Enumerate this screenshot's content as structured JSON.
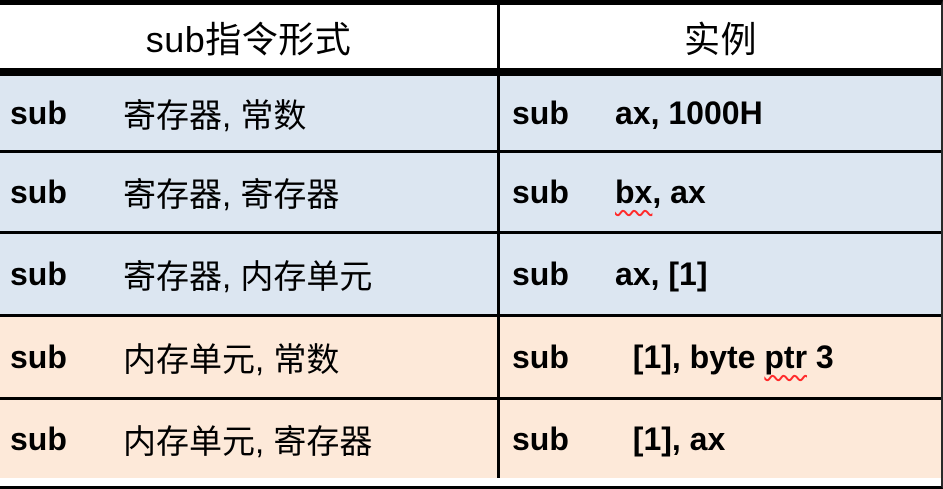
{
  "colors": {
    "row_blue": "#dce6f1",
    "row_orange": "#fde9d9",
    "border": "#000000",
    "squiggle": "#ff2a2a"
  },
  "header": {
    "col1": "sub指令形式",
    "col2": "实例"
  },
  "rows": [
    {
      "kw": "sub",
      "form": "寄存器, 常数",
      "ex_kw": "sub",
      "ex_pre": "ax, 1000H",
      "ex_wavy": "",
      "ex_post": "",
      "tone": "blue"
    },
    {
      "kw": "sub",
      "form": "寄存器, 寄存器",
      "ex_kw": "sub",
      "ex_pre": "",
      "ex_wavy": "bx",
      "ex_post": ", ax",
      "tone": "blue"
    },
    {
      "kw": "sub",
      "form": "寄存器, 内存单元",
      "ex_kw": "sub",
      "ex_pre": "ax, [1]",
      "ex_wavy": "",
      "ex_post": "",
      "tone": "blue"
    },
    {
      "kw": "sub",
      "form": "内存单元, 常数",
      "ex_kw": "sub",
      "ex_pre": "  [1], byte ",
      "ex_wavy": "ptr",
      "ex_post": " 3",
      "tone": "orange"
    },
    {
      "kw": "sub",
      "form": "内存单元, 寄存器",
      "ex_kw": "sub",
      "ex_pre": "  [1], ax",
      "ex_wavy": "",
      "ex_post": "",
      "tone": "orange"
    }
  ]
}
